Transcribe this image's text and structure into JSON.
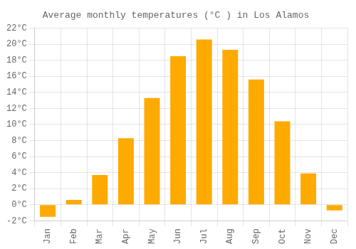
{
  "chart_data": {
    "type": "bar",
    "title": "Average monthly temperatures (°C ) in Los Alamos",
    "categories": [
      "Jan",
      "Feb",
      "Mar",
      "Apr",
      "May",
      "Jun",
      "Jul",
      "Aug",
      "Sep",
      "Oct",
      "Nov",
      "Dec"
    ],
    "values": [
      -1.5,
      0.6,
      3.7,
      8.3,
      13.3,
      18.5,
      20.6,
      19.3,
      15.6,
      10.4,
      3.9,
      -0.7
    ],
    "color": "#FFAA00",
    "ylim": [
      -2,
      22
    ],
    "yticks": [
      {
        "value": -2,
        "label": "-2°C"
      },
      {
        "value": 0,
        "label": "0°C"
      },
      {
        "value": 2,
        "label": "2°C"
      },
      {
        "value": 4,
        "label": "4°C"
      },
      {
        "value": 6,
        "label": "6°C"
      },
      {
        "value": 8,
        "label": "8°C"
      },
      {
        "value": 10,
        "label": "10°C"
      },
      {
        "value": 12,
        "label": "12°C"
      },
      {
        "value": 14,
        "label": "14°C"
      },
      {
        "value": 16,
        "label": "16°C"
      },
      {
        "value": 18,
        "label": "18°C"
      },
      {
        "value": 20,
        "label": "20°C"
      },
      {
        "value": 22,
        "label": "22°C"
      }
    ],
    "grid": true
  }
}
